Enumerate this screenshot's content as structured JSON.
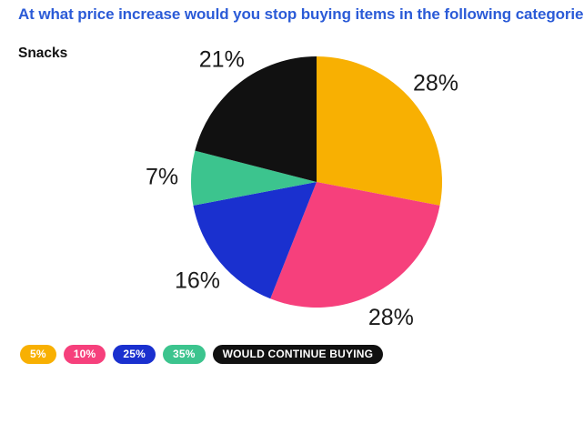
{
  "question": "At what price increase would you stop buying items in the following categories?",
  "category": "Snacks",
  "colors": {
    "accent_title": "#2b5bd7"
  },
  "chart_data": {
    "type": "pie",
    "title": "Snacks",
    "start_angle_deg": 0,
    "direction": "clockwise",
    "slices": [
      {
        "label": "5%",
        "value": 28,
        "display": "28%",
        "color": "#f8b002"
      },
      {
        "label": "10%",
        "value": 28,
        "display": "28%",
        "color": "#f6407c"
      },
      {
        "label": "25%",
        "value": 16,
        "display": "16%",
        "color": "#1a30cf"
      },
      {
        "label": "35%",
        "value": 7,
        "display": "7%",
        "color": "#3cc48e"
      },
      {
        "label": "WOULD CONTINUE BUYING",
        "value": 21,
        "display": "21%",
        "color": "#111111"
      }
    ],
    "legend": {
      "position": "bottom-left"
    }
  }
}
